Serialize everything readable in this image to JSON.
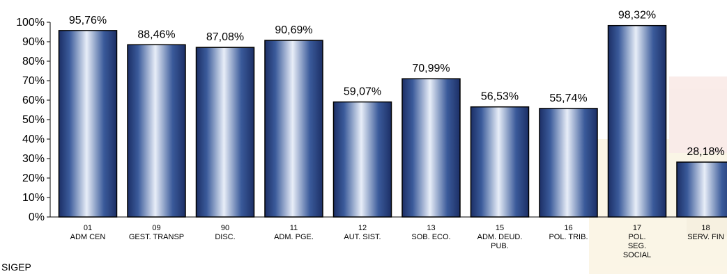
{
  "chart_data": {
    "type": "bar",
    "title": "",
    "xlabel": "",
    "ylabel": "",
    "ylim": [
      0,
      100
    ],
    "y_ticks": [
      "0%",
      "10%",
      "20%",
      "30%",
      "40%",
      "50%",
      "60%",
      "70%",
      "80%",
      "90%",
      "100%"
    ],
    "categories": [
      [
        "01",
        "ADM CEN"
      ],
      [
        "09",
        "GEST. TRANSP"
      ],
      [
        "90",
        "DISC."
      ],
      [
        "11",
        "ADM. PGE."
      ],
      [
        "12",
        "AUT. SIST."
      ],
      [
        "13",
        "SOB. ECO."
      ],
      [
        "15",
        "ADM. DEUD.",
        "PUB."
      ],
      [
        "16",
        "POL. TRIB."
      ],
      [
        "17",
        "POL.",
        "SEG.",
        "SOCIAL"
      ],
      [
        "18",
        "SERV. FIN"
      ]
    ],
    "values": [
      95.76,
      88.46,
      87.08,
      90.69,
      59.07,
      70.99,
      56.53,
      55.74,
      98.32,
      28.18
    ],
    "labels": [
      "95,76%",
      "88,46%",
      "87,08%",
      "90,69%",
      "59,07%",
      "70,99%",
      "56,53%",
      "55,74%",
      "98,32%",
      "28,18%"
    ],
    "grid": false,
    "bar_color": "#1f3b73"
  },
  "footer": {
    "text": "SIGEP"
  }
}
